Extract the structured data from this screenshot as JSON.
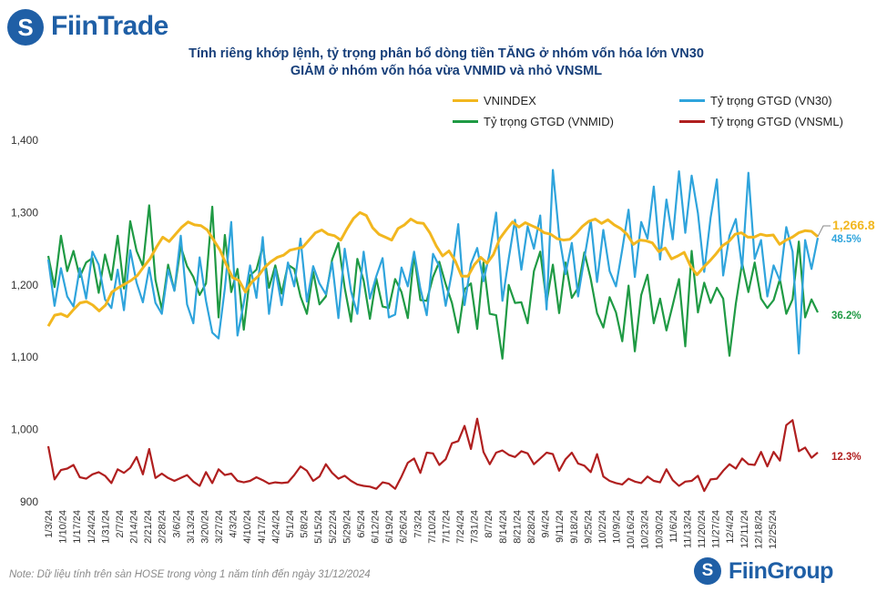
{
  "brand": {
    "top_logo": "FiinTrade",
    "bottom_logo": "FiinGroup",
    "logo_mark": "S"
  },
  "title_line1": "Tính riêng khớp lệnh, tỷ trọng phân bổ dòng tiền TĂNG ở nhóm vốn hóa lớn VN30",
  "title_line2": "GIẢM ở nhóm vốn hóa vừa VNMID và nhỏ VNSML",
  "note": "Note: Dữ liệu tính trên sàn HOSE trong vòng 1 năm tính đến ngày 31/12/2024",
  "colors": {
    "vnindex": "#f2b71f",
    "vn30": "#2fa4dc",
    "vnmid": "#1f9a44",
    "vnsml": "#b01f1f",
    "title": "#173f7a",
    "brand": "#1f5fa6"
  },
  "chart_data": {
    "type": "line",
    "title": "Tính riêng khớp lệnh, tỷ trọng phân bổ dòng tiền TĂNG ở nhóm vốn hóa lớn VN30 / GIẢM ở nhóm vốn hóa vừa VNMID và nhỏ VNSML",
    "ylim": [
      900,
      1400
    ],
    "y_ticks": [
      "1,400",
      "1,300",
      "1,200",
      "1,100",
      "1,000",
      "900"
    ],
    "y_tick_values": [
      1400,
      1300,
      1200,
      1100,
      1000,
      900
    ],
    "x_ticks": [
      "1/3/24",
      "1/10/24",
      "1/17/24",
      "1/24/24",
      "1/31/24",
      "2/7/24",
      "2/14/24",
      "2/21/24",
      "2/28/24",
      "3/6/24",
      "3/13/24",
      "3/20/24",
      "3/27/24",
      "4/3/24",
      "4/10/24",
      "4/17/24",
      "4/24/24",
      "5/1/24",
      "5/8/24",
      "5/15/24",
      "5/22/24",
      "5/29/24",
      "6/5/24",
      "6/12/24",
      "6/19/24",
      "6/26/24",
      "7/3/24",
      "7/10/24",
      "7/17/24",
      "7/24/24",
      "7/31/24",
      "8/7/24",
      "8/14/24",
      "8/21/24",
      "8/28/24",
      "9/4/24",
      "9/11/24",
      "9/18/24",
      "9/25/24",
      "10/2/24",
      "10/9/24",
      "10/16/24",
      "10/23/24",
      "10/30/24",
      "11/6/24",
      "11/13/24",
      "11/20/24",
      "11/27/24",
      "12/4/24",
      "12/11/24",
      "12/18/24",
      "12/25/24"
    ],
    "legend": [
      {
        "name": "VNINDEX",
        "key": "vnindex"
      },
      {
        "name": "Tỷ trọng GTGD (VN30)",
        "key": "vn30"
      },
      {
        "name": "Tỷ trọng GTGD (VNMID)",
        "key": "vnmid"
      },
      {
        "name": "Tỷ trọng GTGD (VNSML)",
        "key": "vnsml"
      }
    ],
    "end_labels": {
      "vnindex": "1,266.8",
      "vn30": "48.5%",
      "vnmid": "36.2%",
      "vnsml": "12.3%"
    },
    "series": [
      {
        "name": "VNINDEX",
        "key": "vnindex",
        "values": [
          1143,
          1158,
          1160,
          1156,
          1166,
          1175,
          1177,
          1172,
          1164,
          1172,
          1190,
          1196,
          1201,
          1206,
          1213,
          1225,
          1236,
          1252,
          1266,
          1260,
          1270,
          1280,
          1287,
          1283,
          1282,
          1276,
          1262,
          1248,
          1228,
          1210,
          1206,
          1190,
          1204,
          1212,
          1224,
          1232,
          1238,
          1241,
          1248,
          1250,
          1252,
          1262,
          1272,
          1276,
          1270,
          1268,
          1262,
          1278,
          1292,
          1300,
          1296,
          1279,
          1270,
          1266,
          1262,
          1278,
          1283,
          1291,
          1286,
          1285,
          1272,
          1254,
          1240,
          1247,
          1233,
          1212,
          1212,
          1228,
          1238,
          1230,
          1242,
          1264,
          1276,
          1287,
          1280,
          1286,
          1282,
          1278,
          1272,
          1270,
          1264,
          1262,
          1263,
          1271,
          1281,
          1288,
          1291,
          1285,
          1290,
          1283,
          1278,
          1270,
          1256,
          1262,
          1261,
          1258,
          1246,
          1251,
          1236,
          1240,
          1245,
          1226,
          1214,
          1224,
          1233,
          1243,
          1254,
          1260,
          1270,
          1272,
          1266,
          1266,
          1270,
          1268,
          1269,
          1256,
          1262,
          1266,
          1272,
          1275,
          1274,
          1266.8
        ]
      },
      {
        "name": "Tỷ trọng GTGD (VN30)",
        "key": "vn30",
        "values": [
          1235,
          1171,
          1223,
          1184,
          1170,
          1223,
          1181,
          1246,
          1228,
          1180,
          1168,
          1221,
          1165,
          1248,
          1203,
          1176,
          1224,
          1175,
          1160,
          1221,
          1192,
          1268,
          1173,
          1147,
          1238,
          1178,
          1134,
          1126,
          1195,
          1287,
          1130,
          1175,
          1227,
          1182,
          1266,
          1160,
          1222,
          1172,
          1231,
          1198,
          1264,
          1177,
          1226,
          1202,
          1187,
          1231,
          1154,
          1250,
          1191,
          1160,
          1246,
          1181,
          1212,
          1237,
          1155,
          1159,
          1224,
          1198,
          1246,
          1195,
          1158,
          1243,
          1226,
          1171,
          1218,
          1284,
          1172,
          1229,
          1251,
          1205,
          1245,
          1300,
          1178,
          1236,
          1290,
          1221,
          1281,
          1250,
          1296,
          1166,
          1359,
          1268,
          1215,
          1258,
          1184,
          1237,
          1289,
          1204,
          1276,
          1219,
          1198,
          1249,
          1304,
          1211,
          1287,
          1264,
          1336,
          1235,
          1318,
          1263,
          1357,
          1272,
          1351,
          1299,
          1218,
          1293,
          1346,
          1213,
          1268,
          1291,
          1223,
          1355,
          1236,
          1262,
          1184,
          1227,
          1206,
          1280,
          1246,
          1105,
          1262,
          1222,
          1265
        ]
      },
      {
        "name": "Tỷ trọng GTGD (VNMID)",
        "key": "vnmid",
        "values": [
          1240,
          1197,
          1268,
          1219,
          1247,
          1211,
          1231,
          1237,
          1189,
          1242,
          1207,
          1268,
          1195,
          1288,
          1247,
          1226,
          1310,
          1207,
          1166,
          1228,
          1192,
          1253,
          1226,
          1211,
          1186,
          1202,
          1308,
          1155,
          1269,
          1190,
          1222,
          1138,
          1213,
          1221,
          1254,
          1196,
          1227,
          1188,
          1228,
          1222,
          1184,
          1160,
          1218,
          1173,
          1184,
          1235,
          1258,
          1196,
          1149,
          1236,
          1206,
          1153,
          1209,
          1170,
          1168,
          1208,
          1190,
          1154,
          1242,
          1179,
          1178,
          1211,
          1232,
          1201,
          1175,
          1134,
          1194,
          1202,
          1139,
          1231,
          1160,
          1158,
          1098,
          1200,
          1175,
          1176,
          1147,
          1219,
          1246,
          1176,
          1228,
          1161,
          1231,
          1182,
          1196,
          1245,
          1208,
          1161,
          1141,
          1183,
          1162,
          1122,
          1199,
          1108,
          1186,
          1214,
          1147,
          1181,
          1137,
          1172,
          1208,
          1115,
          1247,
          1162,
          1203,
          1175,
          1196,
          1181,
          1102,
          1174,
          1230,
          1190,
          1231,
          1181,
          1168,
          1179,
          1208,
          1160,
          1180,
          1260,
          1155,
          1180,
          1162
        ]
      },
      {
        "name": "Tỷ trọng GTGD (VNSML)",
        "key": "vnsml",
        "values": [
          977,
          931,
          944,
          946,
          951,
          934,
          932,
          938,
          941,
          936,
          926,
          945,
          940,
          947,
          962,
          938,
          973,
          933,
          939,
          933,
          929,
          933,
          937,
          928,
          922,
          941,
          926,
          945,
          937,
          939,
          929,
          927,
          929,
          934,
          930,
          925,
          927,
          926,
          927,
          937,
          949,
          943,
          929,
          935,
          952,
          940,
          932,
          936,
          929,
          924,
          922,
          921,
          918,
          927,
          925,
          918,
          935,
          954,
          960,
          940,
          968,
          967,
          951,
          959,
          981,
          984,
          1005,
          973,
          1015,
          969,
          952,
          968,
          971,
          965,
          962,
          970,
          967,
          952,
          960,
          968,
          966,
          943,
          959,
          968,
          953,
          950,
          941,
          966,
          935,
          929,
          926,
          924,
          932,
          928,
          926,
          935,
          929,
          927,
          945,
          930,
          922,
          928,
          929,
          936,
          915,
          931,
          932,
          943,
          952,
          946,
          960,
          952,
          951,
          969,
          949,
          969,
          957,
          1006,
          1013,
          970,
          975,
          961,
          968.3
        ]
      }
    ]
  }
}
